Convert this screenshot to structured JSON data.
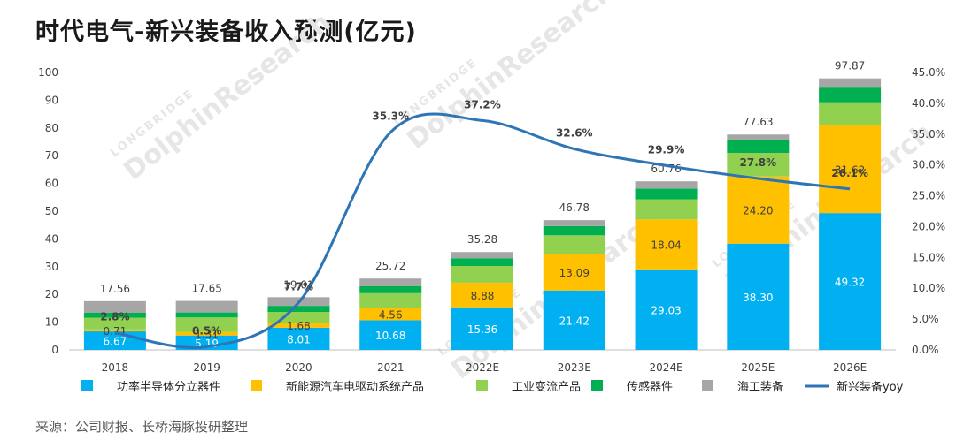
{
  "title": "时代电气-新兴装备收入预测(亿元)",
  "source": "来源：公司财报、长桥海豚投研整理",
  "watermark": {
    "brand": "DolphinResearch",
    "sub": "LONGBRIDGE"
  },
  "chart_data": {
    "type": "bar",
    "stacked": true,
    "title": "时代电气-新兴装备收入预测(亿元)",
    "categories": [
      "2018",
      "2019",
      "2020",
      "2021",
      "2022E",
      "2023E",
      "2024E",
      "2025E",
      "2026E"
    ],
    "series": [
      {
        "name": "功率半导体分立器件",
        "color": "#00b0f0",
        "values": [
          6.67,
          5.19,
          8.01,
          10.68,
          15.36,
          21.42,
          29.03,
          38.3,
          49.32
        ],
        "labels": [
          "6.67",
          "5.19",
          "8.01",
          "10.68",
          "15.36",
          "21.42",
          "29.03",
          "38.30",
          "49.32"
        ]
      },
      {
        "name": "新能源汽车电驱动系统产品",
        "color": "#ffc000",
        "values": [
          0.71,
          1.31,
          1.68,
          4.56,
          8.88,
          13.09,
          18.04,
          24.2,
          31.62
        ],
        "labels": [
          "0.71",
          "1.31",
          "1.68",
          "4.56",
          "8.88",
          "13.09",
          "18.04",
          "24.20",
          "31.62"
        ]
      },
      {
        "name": "工业变流产品",
        "color": "#92d050",
        "values": [
          4.2,
          5.2,
          4.0,
          5.2,
          6.0,
          6.8,
          7.2,
          8.5,
          8.3
        ]
      },
      {
        "name": "传感器件",
        "color": "#00b050",
        "values": [
          1.8,
          1.8,
          2.2,
          2.5,
          2.8,
          3.3,
          3.9,
          4.6,
          5.3
        ]
      },
      {
        "name": "海工装备",
        "color": "#a6a6a6",
        "values": [
          4.18,
          4.15,
          3.12,
          2.78,
          2.24,
          2.17,
          2.59,
          2.03,
          3.33
        ]
      }
    ],
    "totals": [
      "17.56",
      "17.65",
      "19.01",
      "25.72",
      "35.28",
      "46.78",
      "60.76",
      "77.63",
      "97.87"
    ],
    "line": {
      "name": "新兴装备yoy",
      "color": "#2e75b6",
      "values": [
        2.8,
        0.5,
        7.7,
        35.3,
        37.2,
        32.6,
        29.9,
        27.8,
        26.1
      ],
      "labels": [
        "2.8%",
        "0.5%",
        "7.7%",
        "35.3%",
        "37.2%",
        "32.6%",
        "29.9%",
        "27.8%",
        "26.1%"
      ]
    },
    "y_left": {
      "min": 0,
      "max": 100,
      "ticks": [
        "0",
        "10",
        "20",
        "30",
        "40",
        "50",
        "60",
        "70",
        "80",
        "90",
        "100"
      ]
    },
    "y_right": {
      "min": 0,
      "max": 45,
      "ticks": [
        "0.0%",
        "5.0%",
        "10.0%",
        "15.0%",
        "20.0%",
        "25.0%",
        "30.0%",
        "35.0%",
        "40.0%",
        "45.0%"
      ]
    },
    "legend_position": "bottom",
    "grid": false
  }
}
